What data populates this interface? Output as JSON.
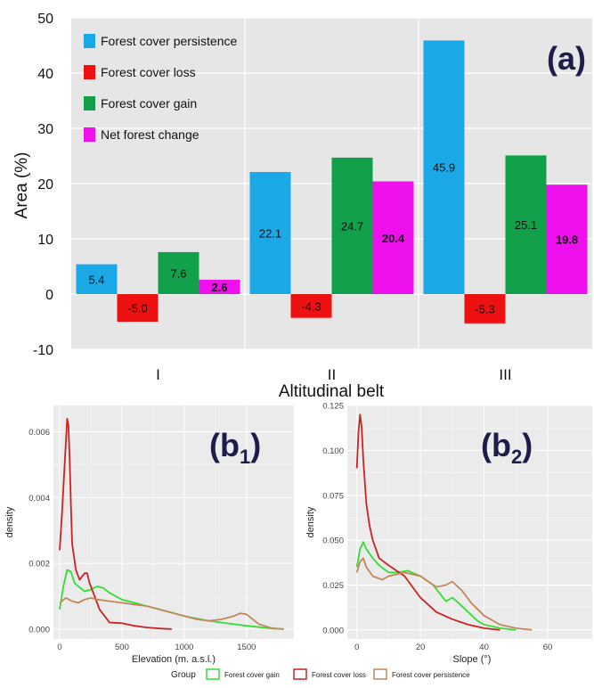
{
  "panel_a": {
    "label": "(a)",
    "chart_data": {
      "type": "bar",
      "categories": [
        "I",
        "II",
        "III"
      ],
      "series": [
        {
          "name": "Forest cover persistence",
          "color": "#1aa9e6",
          "values": [
            5.4,
            22.1,
            45.9
          ],
          "labels": [
            "5.4",
            "22.1",
            "45.9"
          ]
        },
        {
          "name": "Forest cover loss",
          "color": "#ee1111",
          "values": [
            -5.0,
            -4.3,
            -5.3
          ],
          "labels": [
            "-5.0",
            "-4.3",
            "-5.3"
          ]
        },
        {
          "name": "Forest cover gain",
          "color": "#12a04a",
          "values": [
            7.6,
            24.7,
            25.1
          ],
          "labels": [
            "7.6",
            "24.7",
            "25.1"
          ]
        },
        {
          "name": "Net forest change",
          "color": "#ee11ee",
          "values": [
            2.6,
            20.4,
            19.8
          ],
          "labels": [
            "2.6",
            "20.4",
            "19.8"
          ]
        }
      ],
      "xlabel": "Altitudinal belt",
      "ylabel": "Area (%)",
      "ylim": [
        -10,
        50
      ],
      "yticks": [
        -10,
        0,
        10,
        20,
        30,
        40,
        50
      ],
      "grid": true,
      "legend": "top-left"
    }
  },
  "panel_b1": {
    "label_main": "(b",
    "label_sub": "1",
    "label_close": ")",
    "chart_data": {
      "type": "line",
      "xlabel": "Elevation (m. a.s.l.)",
      "ylabel": "density",
      "xlim": [
        -50,
        1880
      ],
      "ylim": [
        -0.0003,
        0.0068
      ],
      "xticks": [
        0,
        500,
        1000,
        1500
      ],
      "xtick_labels": [
        "0",
        "500",
        "1000",
        "1500"
      ],
      "yticks": [
        0,
        0.002,
        0.004,
        0.006
      ],
      "ytick_labels": [
        "0.000",
        "0.002",
        "0.004",
        "0.006"
      ],
      "grid": true,
      "series": [
        {
          "name": "Forest cover gain",
          "color": "#33dd33",
          "x": [
            0,
            30,
            60,
            90,
            120,
            150,
            200,
            250,
            300,
            350,
            400,
            500,
            600,
            700,
            800,
            1000,
            1200,
            1400,
            1500,
            1600,
            1700,
            1800
          ],
          "y": [
            0.0006,
            0.0013,
            0.0018,
            0.00175,
            0.0014,
            0.0013,
            0.00115,
            0.0012,
            0.0013,
            0.00125,
            0.0011,
            0.0009,
            0.0008,
            0.0007,
            0.0006,
            0.0004,
            0.00025,
            0.00015,
            0.0001,
            6e-05,
            2e-05,
            0.0
          ]
        },
        {
          "name": "Forest cover loss",
          "color": "#cc2222",
          "x": [
            0,
            20,
            40,
            60,
            70,
            80,
            90,
            100,
            130,
            160,
            200,
            220,
            240,
            280,
            320,
            360,
            400,
            500,
            600,
            700,
            800,
            900
          ],
          "y": [
            0.0024,
            0.0036,
            0.005,
            0.0064,
            0.0062,
            0.0052,
            0.0038,
            0.0026,
            0.0018,
            0.0015,
            0.0017,
            0.0017,
            0.0014,
            0.001,
            0.0006,
            0.0004,
            0.0002,
            0.00018,
            0.0001,
            5e-05,
            2e-05,
            0.0
          ]
        },
        {
          "name": "Forest cover persistence",
          "color": "#c4875a",
          "x": [
            0,
            50,
            100,
            150,
            200,
            250,
            300,
            400,
            500,
            600,
            700,
            800,
            900,
            1000,
            1100,
            1200,
            1300,
            1400,
            1450,
            1500,
            1550,
            1600,
            1700,
            1800
          ],
          "y": [
            0.0008,
            0.00095,
            0.00085,
            0.0008,
            0.0009,
            0.00095,
            0.0009,
            0.00085,
            0.0008,
            0.00075,
            0.0007,
            0.0006,
            0.0005,
            0.0004,
            0.0003,
            0.00025,
            0.0003,
            0.0004,
            0.00048,
            0.00045,
            0.0003,
            0.00015,
            3e-05,
            0.0
          ]
        }
      ]
    }
  },
  "panel_b2": {
    "label_main": "(b",
    "label_sub": "2",
    "label_close": ")",
    "chart_data": {
      "type": "line",
      "xlabel": "Slope (°)",
      "ylabel": "density",
      "xlim": [
        -3,
        74
      ],
      "ylim": [
        -0.005,
        0.125
      ],
      "xticks": [
        0,
        20,
        40,
        60
      ],
      "xtick_labels": [
        "0",
        "20",
        "40",
        "60"
      ],
      "yticks": [
        0,
        0.025,
        0.05,
        0.075,
        0.1,
        0.125
      ],
      "ytick_labels": [
        "0.000",
        "0.025",
        "0.050",
        "0.075",
        "0.100",
        "0.125"
      ],
      "grid": true,
      "series": [
        {
          "name": "Forest cover gain",
          "color": "#33dd33",
          "x": [
            0,
            1,
            2,
            3,
            5,
            7,
            10,
            13,
            16,
            20,
            24,
            28,
            30,
            32,
            35,
            38,
            40,
            45,
            50
          ],
          "y": [
            0.035,
            0.045,
            0.049,
            0.045,
            0.04,
            0.036,
            0.032,
            0.032,
            0.033,
            0.03,
            0.025,
            0.016,
            0.018,
            0.015,
            0.01,
            0.005,
            0.003,
            0.001,
            0.0
          ]
        },
        {
          "name": "Forest cover loss",
          "color": "#cc2222",
          "x": [
            0,
            0.5,
            1,
            1.5,
            2,
            3,
            4,
            5,
            7,
            10,
            15,
            20,
            25,
            30,
            35,
            40,
            45
          ],
          "y": [
            0.09,
            0.11,
            0.12,
            0.113,
            0.095,
            0.07,
            0.058,
            0.05,
            0.04,
            0.036,
            0.03,
            0.018,
            0.01,
            0.006,
            0.003,
            0.001,
            0.0
          ]
        },
        {
          "name": "Forest cover persistence",
          "color": "#c4875a",
          "x": [
            0,
            1,
            2,
            3,
            5,
            8,
            10,
            15,
            20,
            25,
            28,
            30,
            33,
            36,
            40,
            45,
            50,
            55
          ],
          "y": [
            0.032,
            0.038,
            0.04,
            0.035,
            0.03,
            0.028,
            0.03,
            0.032,
            0.03,
            0.024,
            0.025,
            0.027,
            0.022,
            0.015,
            0.008,
            0.003,
            0.001,
            0.0
          ]
        }
      ]
    }
  },
  "bottom_legend": {
    "title": "Group",
    "items": [
      {
        "name": "Forest cover gain",
        "color": "#33dd33"
      },
      {
        "name": "Forest cover loss",
        "color": "#cc2222"
      },
      {
        "name": "Forest cover persistence",
        "color": "#c4875a"
      }
    ]
  }
}
